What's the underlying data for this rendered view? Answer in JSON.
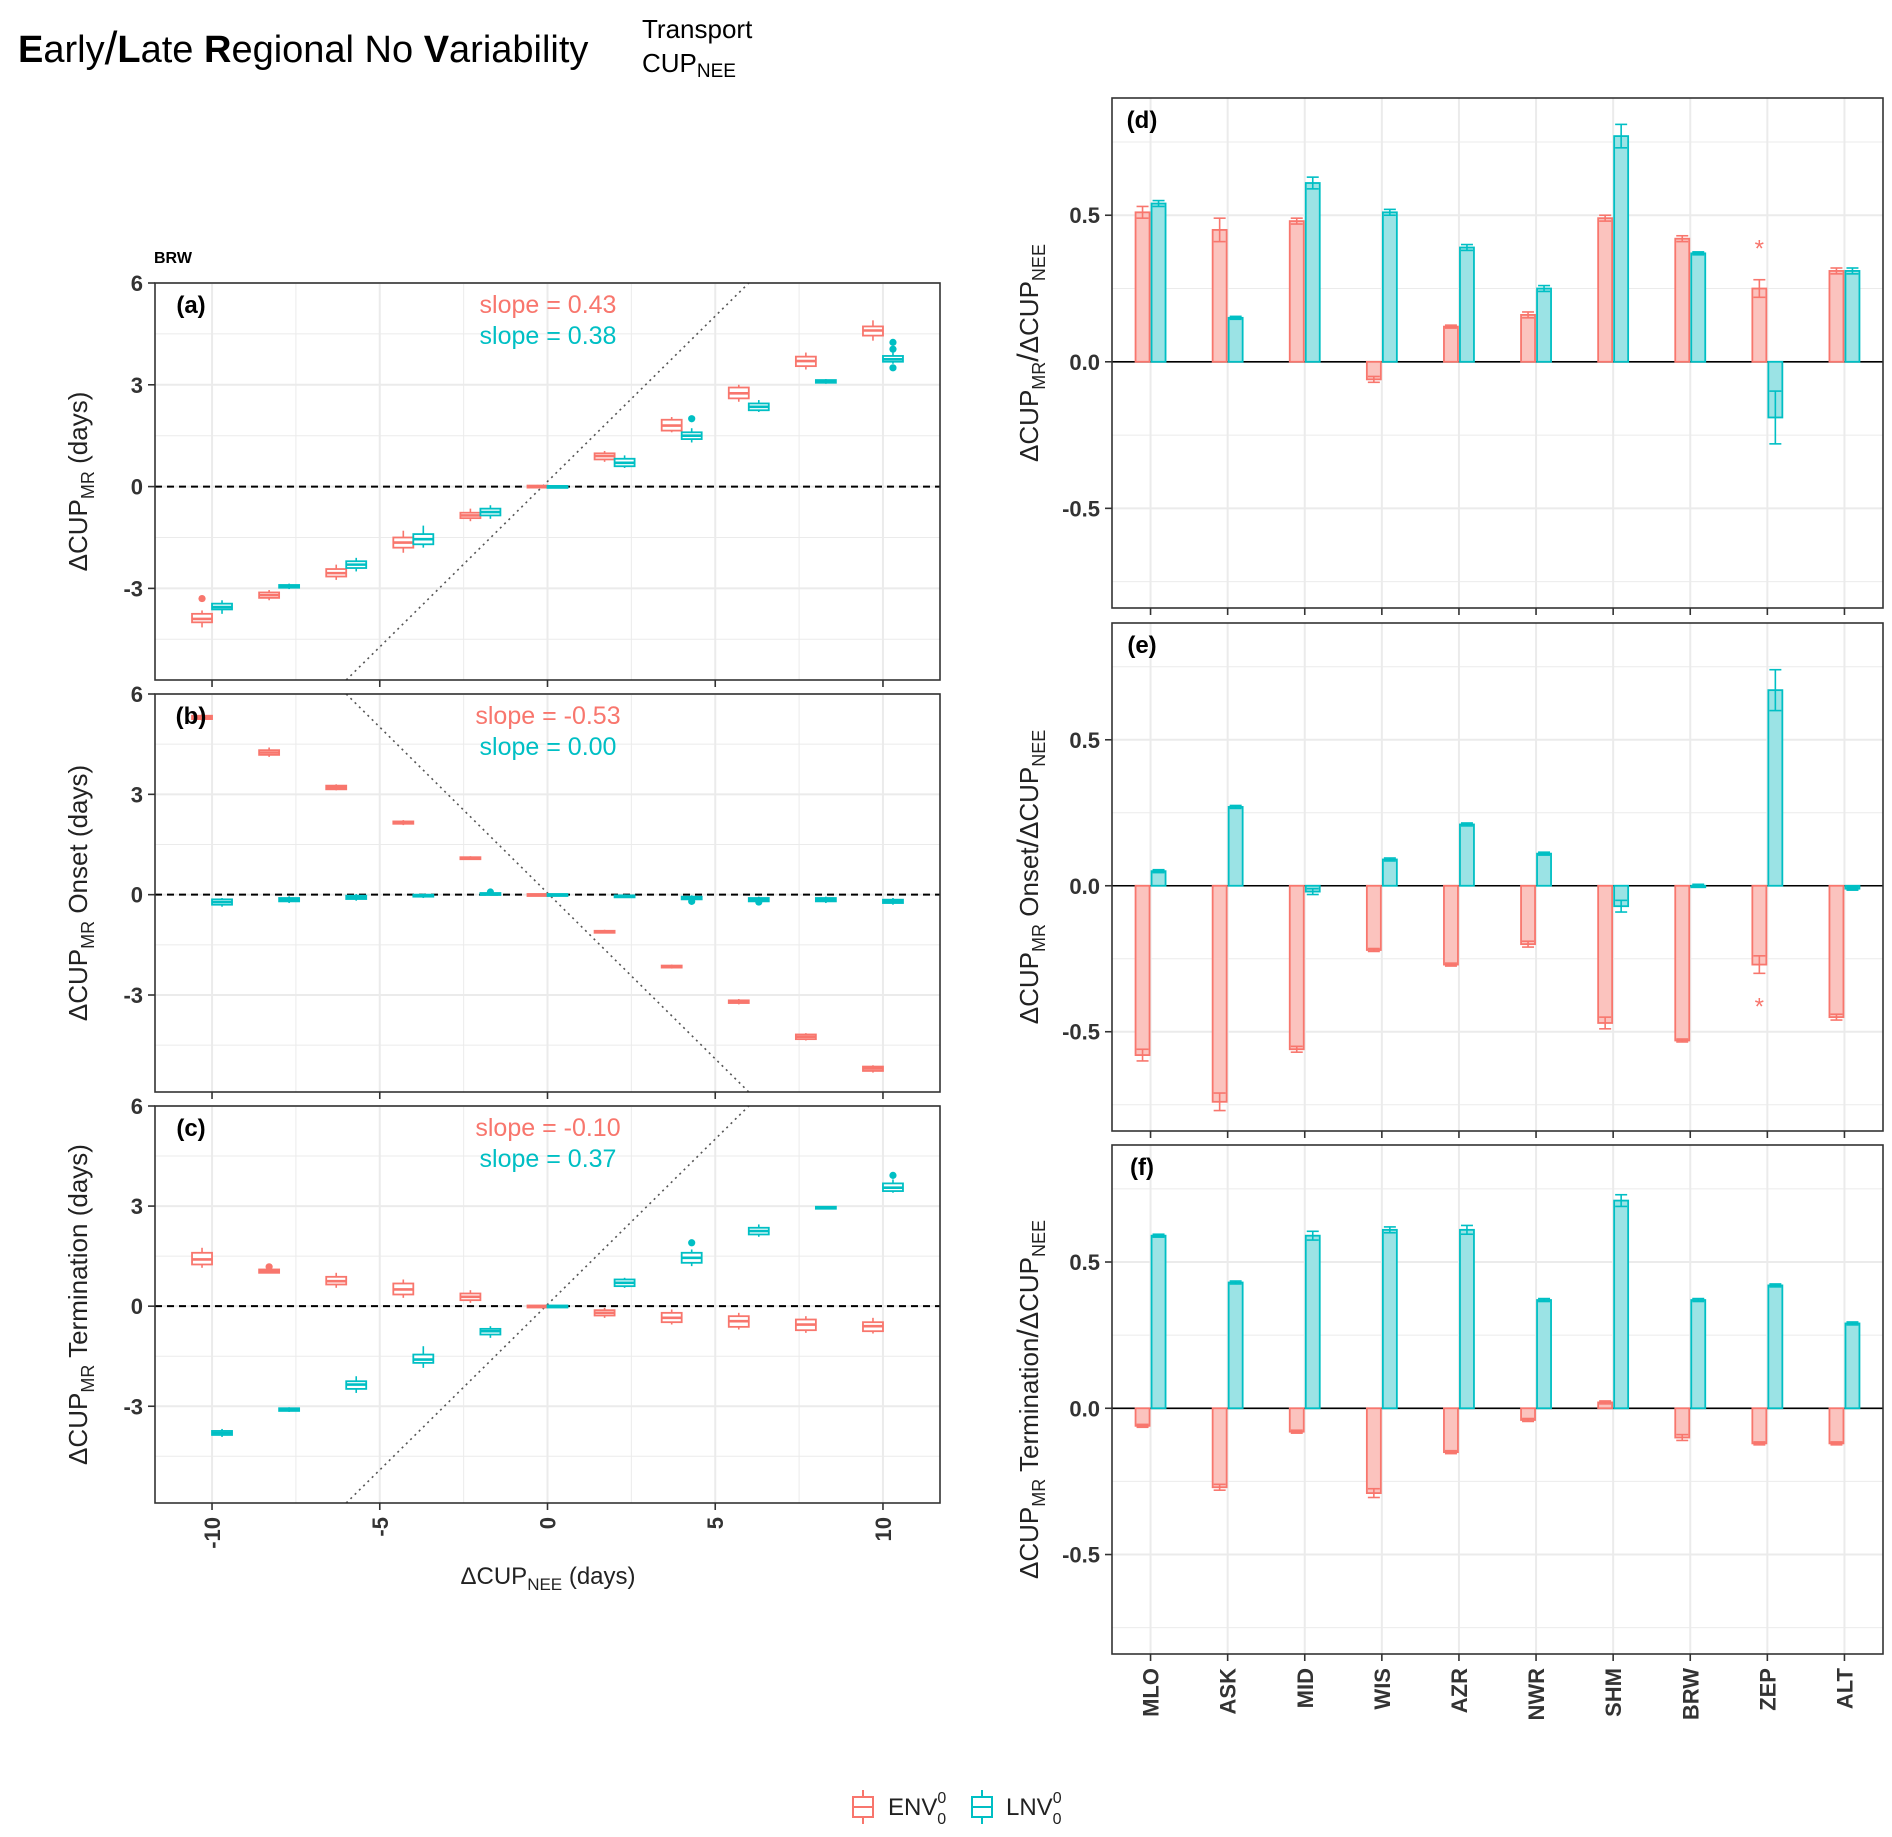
{
  "figure": {
    "title": {
      "e": "E",
      "early": "arly",
      "slash": "/",
      "l": "L",
      "late": "ate ",
      "r": "R",
      "regional": "egional No ",
      "v": "V",
      "variability": "ariability",
      "sup": "Transport",
      "sub_cup": "CUP",
      "sub_nee": "NEE"
    },
    "site_label": "BRW",
    "colors": {
      "env": "#F8766D",
      "lnv": "#00BFC4",
      "env_fill": "#FBC3BE",
      "lnv_fill": "#9BE3E5",
      "grid": "#EBEBEB",
      "frame": "#333333"
    },
    "legend": {
      "env_base": "ENV",
      "lnv_base": "LNV",
      "sup": "0",
      "sub": "0"
    },
    "left_x_label": {
      "delta": "Δ",
      "base": "CUP",
      "sub": "NEE",
      "unit": " (days)"
    }
  },
  "chart_data": [
    {
      "panel": "(a)",
      "type": "box",
      "ylabel": {
        "delta": "Δ",
        "base": "CUP",
        "sub": "MR",
        "tail": " (days)"
      },
      "xlim": [
        -11.7,
        11.7
      ],
      "ylim": [
        -5.7,
        6
      ],
      "xticks": [
        "-10",
        "-5",
        "0",
        "5",
        "10"
      ],
      "yticks": [
        "-3",
        "0",
        "3",
        "6"
      ],
      "slope_env": "slope =  0.43",
      "slope_lnv": "slope = 0.38",
      "series": [
        {
          "name": "ENV",
          "x": [
            -10,
            -8,
            -6,
            -4,
            -2,
            0,
            2,
            4,
            6,
            8,
            10
          ],
          "median": [
            -3.9,
            -3.2,
            -2.55,
            -1.65,
            -0.85,
            0,
            0.9,
            1.8,
            2.75,
            3.7,
            4.6
          ],
          "q1": [
            -4.0,
            -3.28,
            -2.65,
            -1.8,
            -0.93,
            -0.03,
            0.8,
            1.65,
            2.6,
            3.55,
            4.45
          ],
          "q3": [
            -3.75,
            -3.12,
            -2.43,
            -1.5,
            -0.77,
            0.03,
            0.98,
            1.97,
            2.92,
            3.83,
            4.72
          ],
          "wlo": [
            -4.15,
            -3.35,
            -2.75,
            -1.95,
            -1.02,
            -0.05,
            0.73,
            1.6,
            2.5,
            3.45,
            4.3
          ],
          "whi": [
            -3.65,
            -3.05,
            -2.3,
            -1.3,
            -0.65,
            0.05,
            1.05,
            2.05,
            3.0,
            3.95,
            4.9
          ],
          "outliers": [
            [
              -10,
              -3.3
            ]
          ]
        },
        {
          "name": "LNV",
          "x": [
            -10,
            -8,
            -6,
            -4,
            -2,
            0,
            2,
            4,
            6,
            8,
            10
          ],
          "median": [
            -3.55,
            -2.95,
            -2.3,
            -1.55,
            -0.75,
            0,
            0.7,
            1.5,
            2.35,
            3.1,
            3.75
          ],
          "q1": [
            -3.62,
            -2.98,
            -2.4,
            -1.7,
            -0.85,
            -0.02,
            0.6,
            1.4,
            2.25,
            3.06,
            3.68
          ],
          "q3": [
            -3.45,
            -2.9,
            -2.2,
            -1.4,
            -0.65,
            0.02,
            0.82,
            1.6,
            2.45,
            3.14,
            3.85
          ],
          "wlo": [
            -3.75,
            -3.02,
            -2.5,
            -1.8,
            -0.95,
            -0.03,
            0.55,
            1.3,
            2.2,
            3.03,
            3.62
          ],
          "whi": [
            -3.35,
            -2.86,
            -2.1,
            -1.15,
            -0.55,
            0.03,
            0.92,
            1.72,
            2.55,
            3.17,
            3.95
          ],
          "outliers": [
            [
              4,
              2.0
            ],
            [
              10,
              4.25
            ],
            [
              10,
              4.05
            ],
            [
              10,
              3.5
            ]
          ]
        }
      ],
      "diag": {
        "x1": -6,
        "y1": -5.7,
        "x2": 6,
        "y2": 6
      }
    },
    {
      "panel": "(b)",
      "type": "box",
      "ylabel": {
        "delta": "Δ",
        "base": "CUP",
        "sub": "MR",
        "tail": " Onset (days)"
      },
      "xlim": [
        -11.7,
        11.7
      ],
      "ylim": [
        -5.9,
        6
      ],
      "xticks": [
        "-10",
        "-5",
        "0",
        "5",
        "10"
      ],
      "yticks": [
        "-3",
        "0",
        "3",
        "6"
      ],
      "slope_env": "slope = -0.53",
      "slope_lnv": "slope = 0.00",
      "series": [
        {
          "name": "ENV",
          "x": [
            -10,
            -8,
            -6,
            -4,
            -2,
            0,
            2,
            4,
            6,
            8,
            10
          ],
          "median": [
            5.3,
            4.25,
            3.2,
            2.15,
            1.1,
            0,
            -1.1,
            -2.15,
            -3.2,
            -4.25,
            -5.2
          ],
          "q1": [
            5.25,
            4.18,
            3.15,
            2.12,
            1.08,
            -0.02,
            -1.12,
            -2.18,
            -3.24,
            -4.32,
            -5.27
          ],
          "q3": [
            5.35,
            4.32,
            3.26,
            2.19,
            1.12,
            0.02,
            -1.08,
            -2.12,
            -3.16,
            -4.18,
            -5.14
          ],
          "wlo": [
            5.2,
            4.12,
            3.12,
            2.08,
            1.05,
            -0.03,
            -1.15,
            -2.21,
            -3.28,
            -4.36,
            -5.32
          ],
          "whi": [
            5.4,
            4.4,
            3.3,
            2.23,
            1.15,
            0.03,
            -1.05,
            -2.09,
            -3.12,
            -4.14,
            -5.1
          ],
          "outliers": []
        },
        {
          "name": "LNV",
          "x": [
            -10,
            -8,
            -6,
            -4,
            -2,
            0,
            2,
            4,
            6,
            8,
            10
          ],
          "median": [
            -0.22,
            -0.15,
            -0.08,
            -0.03,
            0.02,
            0,
            -0.05,
            -0.1,
            -0.15,
            -0.15,
            -0.2
          ],
          "q1": [
            -0.3,
            -0.2,
            -0.13,
            -0.06,
            0,
            -0.02,
            -0.08,
            -0.14,
            -0.2,
            -0.2,
            -0.25
          ],
          "q3": [
            -0.14,
            -0.1,
            -0.03,
            0,
            0.05,
            0.02,
            -0.02,
            -0.06,
            -0.1,
            -0.1,
            -0.15
          ],
          "wlo": [
            -0.36,
            -0.25,
            -0.18,
            -0.1,
            -0.03,
            -0.03,
            -0.1,
            -0.18,
            -0.25,
            -0.25,
            -0.3
          ],
          "whi": [
            -0.1,
            -0.05,
            0.02,
            0.03,
            0.08,
            0.03,
            0.01,
            -0.02,
            -0.06,
            -0.06,
            -0.1
          ],
          "outliers": [
            [
              -2,
              0.08
            ],
            [
              4,
              -0.2
            ],
            [
              6,
              -0.22
            ]
          ]
        }
      ],
      "diag": {
        "x1": -6,
        "y1": 6,
        "x2": 6,
        "y2": -5.9
      }
    },
    {
      "panel": "(c)",
      "type": "box",
      "ylabel": {
        "delta": "Δ",
        "base": "CUP",
        "sub": "MR",
        "tail": " Termination (days)"
      },
      "xlim": [
        -11.7,
        11.7
      ],
      "ylim": [
        -5.9,
        6
      ],
      "xticks": [
        "-10",
        "-5",
        "0",
        "5",
        "10"
      ],
      "yticks": [
        "-3",
        "0",
        "3",
        "6"
      ],
      "slope_env": "slope = -0.10",
      "slope_lnv": "slope = 0.37",
      "series": [
        {
          "name": "ENV",
          "x": [
            -10,
            -8,
            -6,
            -4,
            -2,
            0,
            2,
            4,
            6,
            8,
            10
          ],
          "median": [
            1.4,
            1.05,
            0.75,
            0.5,
            0.28,
            0,
            -0.2,
            -0.35,
            -0.45,
            -0.55,
            -0.6
          ],
          "q1": [
            1.25,
            1.0,
            0.65,
            0.35,
            0.18,
            -0.02,
            -0.28,
            -0.48,
            -0.62,
            -0.72,
            -0.75
          ],
          "q3": [
            1.6,
            1.1,
            0.88,
            0.68,
            0.38,
            0.02,
            -0.12,
            -0.2,
            -0.3,
            -0.4,
            -0.48
          ],
          "wlo": [
            1.15,
            0.98,
            0.55,
            0.25,
            0.1,
            -0.03,
            -0.35,
            -0.55,
            -0.7,
            -0.8,
            -0.82
          ],
          "whi": [
            1.75,
            1.15,
            1.0,
            0.8,
            0.48,
            0.03,
            -0.05,
            -0.1,
            -0.2,
            -0.3,
            -0.35
          ],
          "outliers": [
            [
              -8,
              1.18
            ]
          ]
        },
        {
          "name": "LNV",
          "x": [
            -10,
            -8,
            -6,
            -4,
            -2,
            0,
            2,
            4,
            6,
            8,
            10
          ],
          "median": [
            -3.8,
            -3.1,
            -2.35,
            -1.6,
            -0.75,
            0,
            0.7,
            1.45,
            2.25,
            2.95,
            3.55
          ],
          "q1": [
            -3.86,
            -3.14,
            -2.48,
            -1.7,
            -0.85,
            -0.02,
            0.6,
            1.3,
            2.15,
            2.92,
            3.45
          ],
          "q3": [
            -3.74,
            -3.06,
            -2.25,
            -1.45,
            -0.68,
            0.02,
            0.8,
            1.6,
            2.35,
            2.98,
            3.68
          ],
          "wlo": [
            -3.92,
            -3.17,
            -2.6,
            -1.85,
            -0.95,
            -0.03,
            0.55,
            1.2,
            2.08,
            2.9,
            3.4
          ],
          "whi": [
            -3.68,
            -3.03,
            -2.1,
            -1.2,
            -0.6,
            0.03,
            0.85,
            1.7,
            2.45,
            3.0,
            3.8
          ],
          "outliers": [
            [
              4,
              1.9
            ],
            [
              10,
              3.92
            ]
          ]
        }
      ],
      "diag": {
        "x1": -6,
        "y1": -5.9,
        "x2": 6,
        "y2": 6
      }
    },
    {
      "panel": "(d)",
      "type": "bar",
      "ylabel": {
        "delta": "Δ",
        "base": "CUP",
        "sub": "MR",
        "tail": "",
        "slash": "/",
        "delta2": "Δ",
        "base2": "CUP",
        "sub2": "NEE"
      },
      "ylim": [
        -0.84,
        0.9
      ],
      "yticks": [
        "-0.5",
        "0.0",
        "0.5"
      ],
      "categories": [
        "MLO",
        "ASK",
        "MID",
        "WIS",
        "AZR",
        "NWR",
        "SHM",
        "BRW",
        "ZEP",
        "ALT"
      ],
      "series": [
        {
          "name": "ENV",
          "values": [
            0.51,
            0.45,
            0.48,
            -0.06,
            0.12,
            0.16,
            0.49,
            0.42,
            0.25,
            0.31
          ],
          "err": [
            0.02,
            0.04,
            0.01,
            0.01,
            0.005,
            0.01,
            0.01,
            0.01,
            0.03,
            0.01
          ]
        },
        {
          "name": "LNV",
          "values": [
            0.54,
            0.15,
            0.61,
            0.51,
            0.39,
            0.25,
            0.77,
            0.37,
            -0.19,
            0.31
          ],
          "err": [
            0.01,
            0.005,
            0.02,
            0.01,
            0.01,
            0.01,
            0.04,
            0.005,
            0.09,
            0.01
          ]
        }
      ],
      "stars": [
        {
          "cat": "ZEP",
          "series": "ENV",
          "value": 0.4
        }
      ]
    },
    {
      "panel": "(e)",
      "type": "bar",
      "ylabel": {
        "delta": "Δ",
        "base": "CUP",
        "sub": "MR",
        "tail": " Onset",
        "slash": "/",
        "delta2": "Δ",
        "base2": "CUP",
        "sub2": "NEE"
      },
      "ylim": [
        -0.84,
        0.9
      ],
      "yticks": [
        "-0.5",
        "0.0",
        "0.5"
      ],
      "categories": [
        "MLO",
        "ASK",
        "MID",
        "WIS",
        "AZR",
        "NWR",
        "SHM",
        "BRW",
        "ZEP",
        "ALT"
      ],
      "series": [
        {
          "name": "ENV",
          "values": [
            -0.58,
            -0.74,
            -0.56,
            -0.22,
            -0.27,
            -0.2,
            -0.47,
            -0.53,
            -0.27,
            -0.45
          ],
          "err": [
            0.02,
            0.03,
            0.01,
            0.005,
            0.005,
            0.01,
            0.02,
            0.005,
            0.03,
            0.01
          ]
        },
        {
          "name": "LNV",
          "values": [
            0.05,
            0.27,
            -0.02,
            0.09,
            0.21,
            0.11,
            -0.07,
            0.0,
            0.67,
            -0.01
          ],
          "err": [
            0.005,
            0.005,
            0.01,
            0.005,
            0.005,
            0.005,
            0.02,
            0.005,
            0.07,
            0.005
          ]
        }
      ],
      "stars": [
        {
          "cat": "ZEP",
          "series": "ENV",
          "value": -0.4
        }
      ]
    },
    {
      "panel": "(f)",
      "type": "bar",
      "ylabel": {
        "delta": "Δ",
        "base": "CUP",
        "sub": "MR",
        "tail": " Termination",
        "slash": "/",
        "delta2": "Δ",
        "base2": "CUP",
        "sub2": "NEE"
      },
      "ylim": [
        -0.84,
        0.9
      ],
      "yticks": [
        "-0.5",
        "0.0",
        "0.5"
      ],
      "categories": [
        "MLO",
        "ASK",
        "MID",
        "WIS",
        "AZR",
        "NWR",
        "SHM",
        "BRW",
        "ZEP",
        "ALT"
      ],
      "series": [
        {
          "name": "ENV",
          "values": [
            -0.06,
            -0.27,
            -0.08,
            -0.29,
            -0.15,
            -0.04,
            0.02,
            -0.1,
            -0.12,
            -0.12
          ],
          "err": [
            0.005,
            0.01,
            0.005,
            0.015,
            0.005,
            0.005,
            0.005,
            0.01,
            0.005,
            0.005
          ]
        },
        {
          "name": "LNV",
          "values": [
            0.59,
            0.43,
            0.59,
            0.61,
            0.61,
            0.37,
            0.71,
            0.37,
            0.42,
            0.29
          ],
          "err": [
            0.005,
            0.005,
            0.015,
            0.01,
            0.015,
            0.005,
            0.02,
            0.005,
            0.005,
            0.005
          ]
        }
      ],
      "stars": []
    }
  ]
}
